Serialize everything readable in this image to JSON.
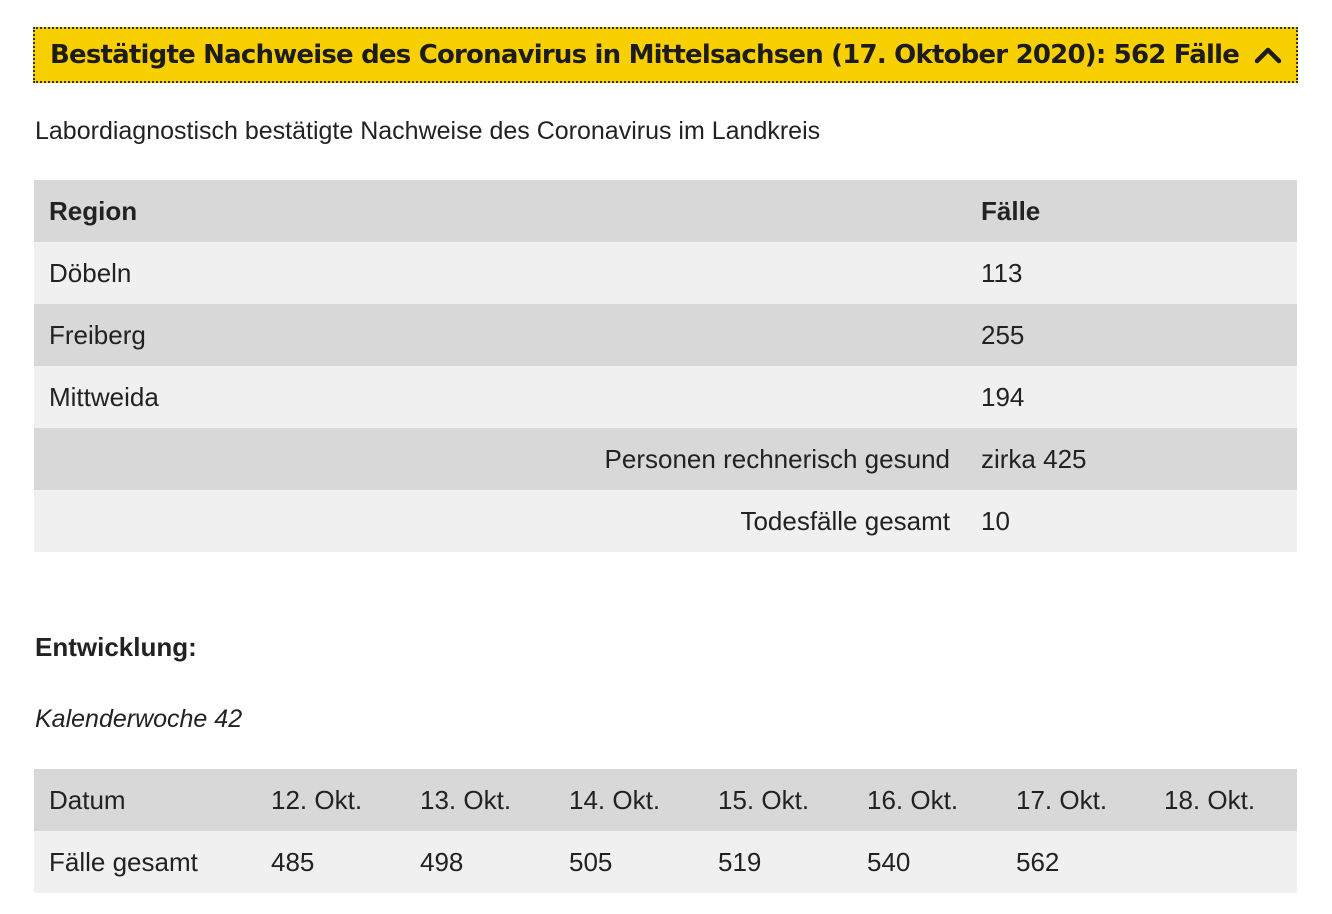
{
  "accordion": {
    "title": "Bestätigte Nachweise des Coronavirus in Mittelsachsen (17. Oktober 2020): 562 Fälle",
    "toggle_icon": "chevron-up-icon"
  },
  "intro": "Labordiagnostisch bestätigte Nachweise des Coronavirus im Landkreis",
  "region_table": {
    "headers": [
      "Region",
      "Fälle"
    ],
    "rows": [
      {
        "region": "Döbeln",
        "cases": "113"
      },
      {
        "region": "Freiberg",
        "cases": "255"
      },
      {
        "region": "Mittweida",
        "cases": "194"
      }
    ],
    "summary": [
      {
        "label": "Personen rechnerisch gesund",
        "value": "zirka 425"
      },
      {
        "label": "Todesfälle gesamt",
        "value": "10"
      }
    ]
  },
  "development": {
    "heading": "Entwicklung:",
    "week": "Kalenderwoche 42",
    "table": {
      "header_label": "Datum",
      "dates": [
        "12. Okt.",
        "13. Okt.",
        "14. Okt.",
        "15. Okt.",
        "16. Okt.",
        "17. Okt.",
        "18. Okt."
      ],
      "row_label": "Fälle gesamt",
      "values": [
        "485",
        "498",
        "505",
        "519",
        "540",
        "562",
        ""
      ]
    }
  }
}
